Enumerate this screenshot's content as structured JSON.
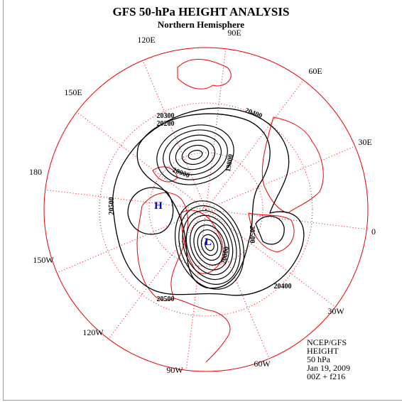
{
  "header": {
    "title": "GFS 50-hPa HEIGHT ANALYSIS",
    "subtitle": "Northern Hemisphere"
  },
  "longitude_labels": [
    "90E",
    "60E",
    "30E",
    "0",
    "30W",
    "60W",
    "90W",
    "120W",
    "150W",
    "180",
    "150E",
    "120E"
  ],
  "contour_labels": [
    "20400",
    "20300",
    "20200",
    "19800",
    "20000",
    "20500",
    "20500",
    "20400",
    "20500",
    "20000"
  ],
  "centers": [
    "H",
    "L"
  ],
  "footer": [
    "NCEP/GFS",
    "HEIGHT",
    "50 hPa",
    "Jan 19, 2009",
    "00Z + f216"
  ]
}
